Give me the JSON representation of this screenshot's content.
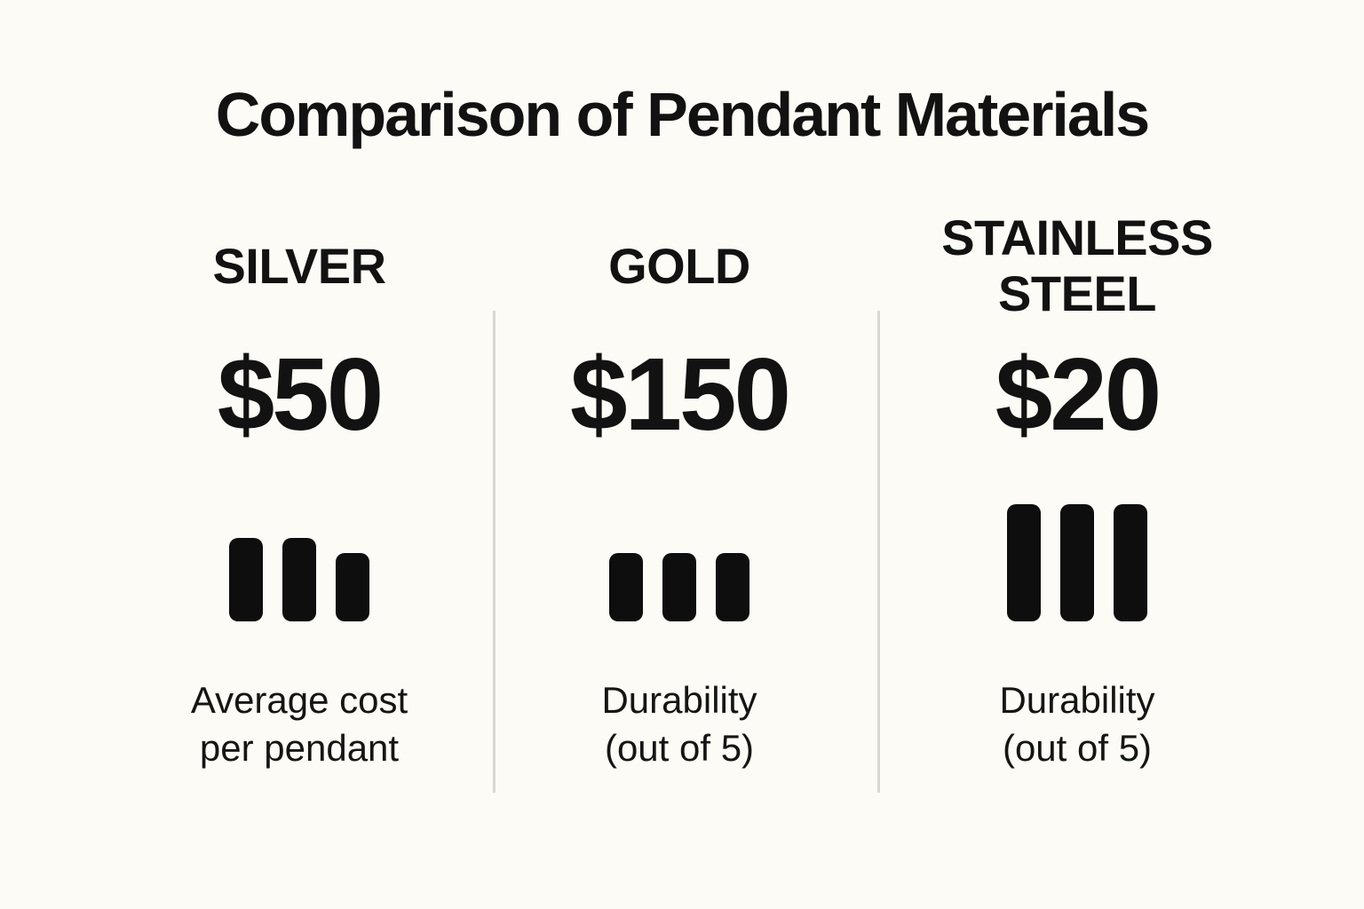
{
  "page": {
    "title": "Comparison of Pendant Materials",
    "background_color": "#fdfbf5",
    "text_color": "#121212",
    "bar_color": "#0e0e0e",
    "divider_color": "#dad8d2"
  },
  "columns": [
    {
      "name": "SILVER",
      "price": "$50",
      "caption": "Average cost\nper pendant",
      "bars": [
        94,
        94,
        77
      ]
    },
    {
      "name": "GOLD",
      "price": "$150",
      "caption": "Durability\n(out of 5)",
      "bars": [
        77,
        77,
        77
      ]
    },
    {
      "name": "STAINLESS STEEL",
      "price": "$20",
      "caption": "Durability\n(out of 5)",
      "bars": [
        132,
        132,
        132
      ]
    }
  ],
  "chart_data": {
    "type": "table",
    "title": "Comparison of Pendant Materials",
    "categories": [
      "SILVER",
      "GOLD",
      "STAINLESS STEEL"
    ],
    "series": [
      {
        "name": "Price label shown",
        "values": [
          "$50",
          "$150",
          "$20"
        ]
      },
      {
        "name": "Bar icon relative heights (px, 3 bars each)",
        "values": [
          [
            94,
            94,
            77
          ],
          [
            77,
            77,
            77
          ],
          [
            132,
            132,
            132
          ]
        ]
      }
    ],
    "captions_under_bars": [
      "Average cost per pendant",
      "Durability (out of 5)",
      "Durability (out of 5)"
    ],
    "layout": {
      "columns": 3,
      "dividers_between_columns": true,
      "bars_bottom_aligned": true
    }
  }
}
